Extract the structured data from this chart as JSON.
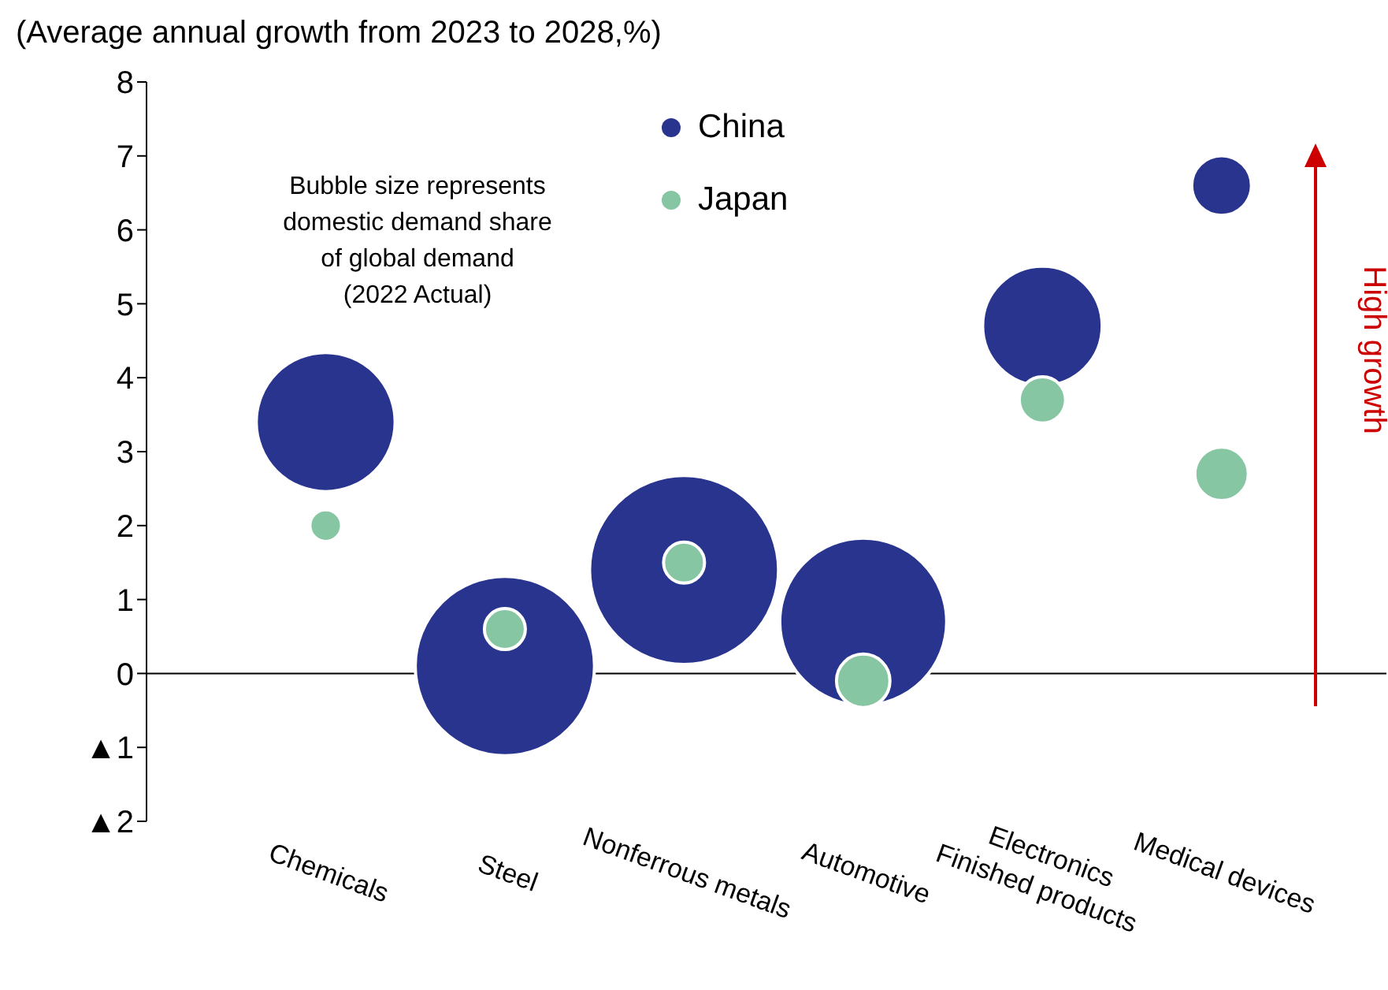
{
  "chart_data": {
    "type": "bubble",
    "ylabel": "(Average annual growth from 2023 to 2028,%)",
    "categories": [
      "Chemicals",
      "Steel",
      "Nonferrous metals",
      "Automotive",
      "Electronics\nFinished products",
      "Medical devices"
    ],
    "series": [
      {
        "name": "China",
        "color": "#29348f",
        "values": [
          3.4,
          0.1,
          1.4,
          0.7,
          4.7,
          6.6
        ],
        "sizes": [
          0.54,
          0.9,
          1,
          0.78,
          0.4,
          0.1
        ]
      },
      {
        "name": "Japan",
        "color": "#86c6a2",
        "values": [
          2.0,
          0.6,
          1.5,
          -0.1,
          3.7,
          2.7
        ],
        "sizes": [
          0.028,
          0.047,
          0.047,
          0.08,
          0.06,
          0.08
        ]
      }
    ],
    "ylim": [
      -2,
      8
    ],
    "yticks": [
      {
        "value": -2,
        "label": "▲2"
      },
      {
        "value": -1,
        "label": "▲1"
      },
      0,
      1,
      2,
      3,
      4,
      5,
      6,
      7,
      8
    ],
    "legend": "top",
    "marker": "circle",
    "annotations": [
      "Bubble size represents\ndomestic demand share\nof global demand\n(2022 Actual)",
      "High growth"
    ]
  }
}
